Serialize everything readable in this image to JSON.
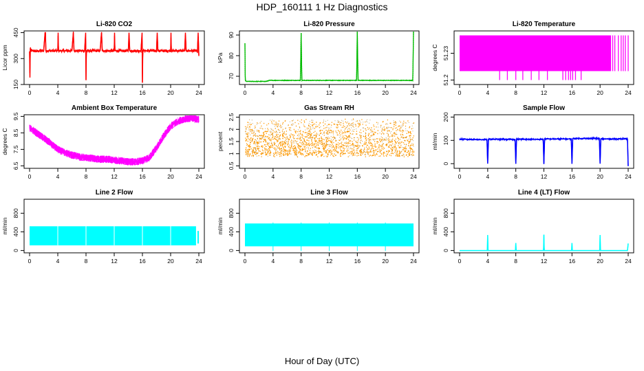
{
  "title": "HDP_160111  1 Hz Diagnostics",
  "xlabel": "Hour of Day (UTC)",
  "chart_data": [
    {
      "type": "line",
      "title": "Li-820 CO2",
      "ylabel": "Licor ppm",
      "color": "#ff0000",
      "ylim": [
        150,
        460
      ],
      "yticks": [
        150,
        300,
        450
      ],
      "xlim": [
        0,
        24
      ],
      "xticks": [
        0,
        4,
        8,
        12,
        16,
        20,
        24
      ],
      "series": [
        {
          "x": [
            0,
            0.05,
            0.1,
            0.2,
            0.5,
            1,
            1.5,
            2,
            2.2,
            2.25,
            2.3,
            2.5,
            3,
            3.5,
            4,
            4.05,
            4.1,
            4.5,
            5,
            5.5,
            6,
            6.2,
            6.3,
            6.5,
            7,
            7.5,
            7.8,
            7.95,
            8.0,
            8.05,
            8.2,
            8.5,
            9,
            9.5,
            10,
            10.2,
            10.3,
            10.5,
            11,
            11.5,
            12,
            12.05,
            12.1,
            12.5,
            13,
            13.5,
            14,
            14.1,
            14.2,
            14.5,
            15,
            15.5,
            15.8,
            15.95,
            16.0,
            16.05,
            16.2,
            16.5,
            17,
            17.5,
            18,
            18.1,
            18.2,
            18.5,
            19,
            19.5,
            20,
            20.05,
            20.1,
            20.5,
            21,
            21.5,
            22,
            22.1,
            22.2,
            22.5,
            23,
            23.5,
            23.8,
            23.9,
            24
          ],
          "y": [
            340,
            190,
            360,
            345,
            345,
            342,
            345,
            345,
            450,
            450,
            345,
            345,
            345,
            345,
            345,
            450,
            345,
            345,
            345,
            345,
            345,
            450,
            345,
            345,
            345,
            345,
            345,
            450,
            175,
            345,
            345,
            345,
            345,
            345,
            345,
            450,
            345,
            345,
            345,
            345,
            345,
            450,
            345,
            345,
            345,
            345,
            345,
            450,
            345,
            345,
            345,
            345,
            345,
            450,
            160,
            345,
            345,
            345,
            345,
            345,
            345,
            450,
            345,
            345,
            345,
            345,
            345,
            450,
            345,
            345,
            345,
            345,
            345,
            450,
            345,
            345,
            345,
            345,
            340,
            450,
            315
          ]
        }
      ]
    },
    {
      "type": "line",
      "title": "Li-820 Pressure",
      "ylabel": "kPa",
      "color": "#00bb00",
      "ylim": [
        66,
        92
      ],
      "yticks": [
        70,
        80,
        90
      ],
      "xlim": [
        0,
        24
      ],
      "xticks": [
        0,
        4,
        8,
        12,
        16,
        20,
        24
      ],
      "series": [
        {
          "x": [
            0,
            0.02,
            0.05,
            0.2,
            1,
            3,
            3.5,
            4,
            6,
            7.9,
            8.0,
            8.1,
            10,
            12,
            15.9,
            16.0,
            16.1,
            18,
            20,
            23.9,
            24.0
          ],
          "y": [
            86,
            75,
            68,
            67.5,
            67.5,
            67.5,
            68,
            68,
            68,
            68,
            91,
            68,
            68,
            68,
            68,
            92,
            68,
            68,
            68,
            68,
            92
          ]
        }
      ]
    },
    {
      "type": "line",
      "title": "Li-820 Temperature",
      "ylabel": "degrees C",
      "color": "#ff00ff",
      "ylim": [
        51.195,
        51.255
      ],
      "yticks": [
        51.2,
        51.23
      ],
      "xlim": [
        0,
        24
      ],
      "xticks": [
        0,
        4,
        8,
        12,
        16,
        20,
        24
      ],
      "series": [
        {
          "x": [
            0,
            4.5,
            5.7,
            6.8,
            8.0,
            9.0,
            10.2,
            11.3,
            12.5,
            14.7,
            15.1,
            15.5,
            15.8,
            16.1,
            16.5,
            17.3,
            21.5,
            21.8,
            22.1,
            22.6,
            23.0,
            23.3,
            23.6,
            24
          ],
          "y": [
            51.21,
            51.21,
            51.2,
            51.2,
            51.2,
            51.2,
            51.2,
            51.2,
            51.2,
            51.2,
            51.2,
            51.2,
            51.2,
            51.2,
            51.2,
            51.2,
            51.21,
            51.25,
            51.25,
            51.25,
            51.25,
            51.25,
            51.25,
            51.25
          ]
        }
      ]
    },
    {
      "type": "line",
      "title": "Ambient Box Temperature",
      "ylabel": "degrees C",
      "color": "#ff00ff",
      "ylim": [
        6.35,
        9.6
      ],
      "yticks": [
        6.5,
        7.5,
        8.5,
        9.5
      ],
      "xlim": [
        0,
        24
      ],
      "xticks": [
        0,
        4,
        8,
        12,
        16,
        20,
        24
      ],
      "series": [
        {
          "x": [
            0,
            1,
            2,
            3,
            4,
            5,
            6,
            7,
            8,
            9,
            10,
            11,
            12,
            13,
            14,
            15,
            16,
            17,
            18,
            19,
            20,
            21,
            22,
            23,
            24
          ],
          "y": [
            8.8,
            8.5,
            8.2,
            7.85,
            7.5,
            7.3,
            7.15,
            7.05,
            7.0,
            6.95,
            6.9,
            6.9,
            6.85,
            6.8,
            6.75,
            6.75,
            6.8,
            7.0,
            7.6,
            8.3,
            8.9,
            9.2,
            9.35,
            9.4,
            9.3
          ]
        }
      ]
    },
    {
      "type": "scatter",
      "title": "Gas Stream RH",
      "ylabel": "percent",
      "color": "#ff9900",
      "ylim": [
        0.4,
        2.6
      ],
      "yticks": [
        0.5,
        1.0,
        1.5,
        2.0,
        2.5
      ],
      "xlim": [
        0,
        24
      ],
      "xticks": [
        0,
        4,
        8,
        12,
        16,
        20,
        24
      ],
      "series": [
        {
          "x": [
            0,
            24
          ],
          "y": [
            0.7,
            2.5
          ]
        }
      ]
    },
    {
      "type": "line",
      "title": "Sample Flow",
      "ylabel": "ml/min",
      "color": "#0000ff",
      "ylim": [
        -20,
        210
      ],
      "yticks": [
        0,
        100,
        200
      ],
      "xlim": [
        0,
        24
      ],
      "xticks": [
        0,
        4,
        8,
        12,
        16,
        20,
        24
      ],
      "series": [
        {
          "x": [
            0,
            3.9,
            4.0,
            4.1,
            7.9,
            8.0,
            8.1,
            11.9,
            12.0,
            12.1,
            15.9,
            16.0,
            16.1,
            19.9,
            20.0,
            20.1,
            23.9,
            24.0
          ],
          "y": [
            105,
            103,
            0,
            105,
            104,
            0,
            105,
            104,
            0,
            106,
            106,
            0,
            108,
            108,
            0,
            106,
            106,
            -10
          ]
        }
      ]
    },
    {
      "type": "line",
      "title": "Line 2 Flow",
      "ylabel": "ml/min",
      "color": "#00ffff",
      "ylim": [
        -50,
        1100
      ],
      "yticks": [
        0,
        400,
        800
      ],
      "xlim": [
        0,
        24
      ],
      "xticks": [
        0,
        4,
        8,
        12,
        16,
        20,
        24
      ],
      "series": [
        {
          "x": [
            0,
            23.6,
            23.6,
            24
          ],
          "y": [
            520,
            520,
            150,
            420
          ]
        }
      ]
    },
    {
      "type": "line",
      "title": "Line 3 Flow",
      "ylabel": "ml/min",
      "color": "#00ffff",
      "ylim": [
        -50,
        1100
      ],
      "yticks": [
        0,
        400,
        800
      ],
      "xlim": [
        0,
        24
      ],
      "xticks": [
        0,
        4,
        8,
        12,
        16,
        20,
        24
      ],
      "series": [
        {
          "x": [
            0,
            24
          ],
          "y": [
            580,
            580
          ]
        }
      ]
    },
    {
      "type": "line",
      "title": "Line 4 (LT) Flow",
      "ylabel": "ml/min",
      "color": "#00ffff",
      "ylim": [
        -50,
        1100
      ],
      "yticks": [
        0,
        400,
        800
      ],
      "xlim": [
        0,
        24
      ],
      "xticks": [
        0,
        4,
        8,
        12,
        16,
        20,
        24
      ],
      "series": [
        {
          "x": [
            0,
            3.95,
            4.0,
            4.05,
            7.95,
            8.0,
            8.05,
            11.95,
            12.0,
            12.05,
            15.95,
            16.0,
            16.05,
            19.95,
            20.0,
            20.05,
            23.9,
            24.0
          ],
          "y": [
            0,
            0,
            330,
            0,
            0,
            160,
            0,
            0,
            340,
            0,
            0,
            160,
            0,
            0,
            330,
            0,
            0,
            150
          ]
        }
      ]
    }
  ]
}
